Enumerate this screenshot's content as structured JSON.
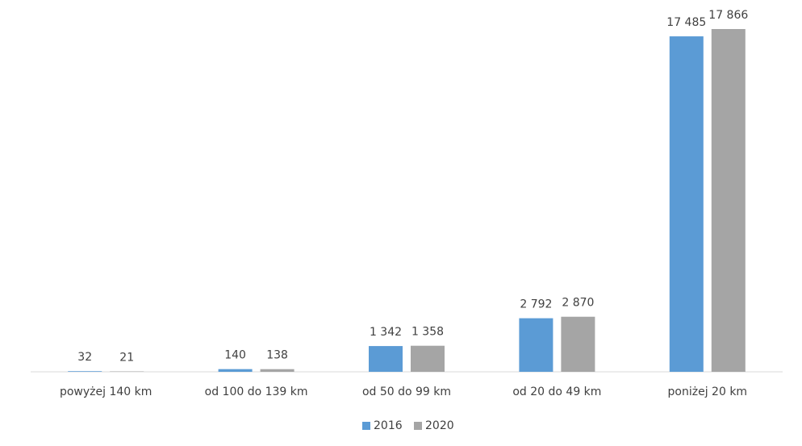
{
  "chart_data": {
    "type": "bar",
    "categories": [
      "powyżej 140 km",
      "od 100 do 139 km",
      "od 50 do 99 km",
      "od 20 do 49 km",
      "poniżej 20 km"
    ],
    "series": [
      {
        "name": "2016",
        "color": "#5b9bd5",
        "values": [
          32,
          140,
          1342,
          2792,
          17485
        ],
        "value_labels": [
          "32",
          "140",
          "1 342",
          "2 792",
          "17 485"
        ]
      },
      {
        "name": "2020",
        "color": "#a5a5a5",
        "values": [
          21,
          138,
          1358,
          2870,
          17866
        ],
        "value_labels": [
          "21",
          "138",
          "1 358",
          "2 870",
          "17 866"
        ]
      }
    ],
    "legend": "bottom"
  }
}
